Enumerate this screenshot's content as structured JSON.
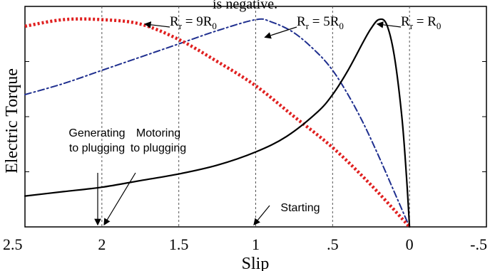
{
  "page": {
    "top_text": "is negative."
  },
  "chart_data": {
    "type": "line",
    "xlabel": "Slip",
    "ylabel": "Electric Torque",
    "x_reversed": true,
    "xlim": [
      2.5,
      -0.5
    ],
    "ylim": [
      0,
      1.0
    ],
    "xticks": [
      "2.5",
      "2",
      "1.5",
      "1",
      ".5",
      "0",
      "-.5"
    ],
    "xtick_values": [
      2.5,
      2,
      1.5,
      1,
      0.5,
      0,
      -0.5
    ],
    "grid": "vertical dashed at ticks",
    "series": [
      {
        "name": "R_r = R_0",
        "color": "#000000",
        "style": "solid",
        "x": [
          2.5,
          2.25,
          2.0,
          1.75,
          1.5,
          1.25,
          1.0,
          0.8,
          0.6,
          0.5,
          0.4,
          0.3,
          0.25,
          0.2,
          0.15,
          0.1,
          0.05,
          0.02,
          0.0
        ],
        "y": [
          0.14,
          0.16,
          0.18,
          0.21,
          0.24,
          0.28,
          0.34,
          0.41,
          0.52,
          0.6,
          0.71,
          0.84,
          0.9,
          0.94,
          0.92,
          0.78,
          0.5,
          0.23,
          0.0
        ]
      },
      {
        "name": "R_r = 5R_0",
        "color": "#1f2f8f",
        "style": "dash-dot",
        "x": [
          2.5,
          2.25,
          2.0,
          1.75,
          1.5,
          1.25,
          1.0,
          0.9,
          0.75,
          0.6,
          0.5,
          0.4,
          0.3,
          0.2,
          0.1,
          0.0
        ],
        "y": [
          0.6,
          0.65,
          0.71,
          0.77,
          0.83,
          0.89,
          0.94,
          0.93,
          0.88,
          0.79,
          0.71,
          0.6,
          0.47,
          0.32,
          0.16,
          0.0
        ]
      },
      {
        "name": "R_r = 9R_0",
        "color": "#e02020",
        "style": "dotted",
        "x": [
          2.5,
          2.25,
          2.0,
          1.75,
          1.5,
          1.25,
          1.0,
          0.75,
          0.5,
          0.25,
          0.0
        ],
        "y": [
          0.91,
          0.94,
          0.94,
          0.92,
          0.85,
          0.75,
          0.64,
          0.5,
          0.36,
          0.19,
          0.0
        ]
      }
    ],
    "annotations": [
      {
        "text_r": "R",
        "text_sub": "r",
        "text_eq": " = 9R",
        "text_sub2": "0",
        "points_to_series": "R_r = 9R_0",
        "x": 1.72,
        "y": 0.92
      },
      {
        "text_r": "R",
        "text_sub": "r",
        "text_eq": " = 5R",
        "text_sub2": "0",
        "points_to_series": "R_r = 5R_0",
        "x": 0.94,
        "y": 0.86
      },
      {
        "text_r": "R",
        "text_sub": "r",
        "text_eq": " = R",
        "text_sub2": "0",
        "points_to_series": "R_r = R_0",
        "x": 0.21,
        "y": 0.92
      }
    ],
    "arrow_labels": [
      {
        "lines": [
          "Generating",
          "to plugging"
        ],
        "x": 2.05
      },
      {
        "lines": [
          "Motoring",
          "to plugging"
        ],
        "x": 2.0
      },
      {
        "lines": [
          "Starting"
        ],
        "x": 1.0
      }
    ]
  }
}
